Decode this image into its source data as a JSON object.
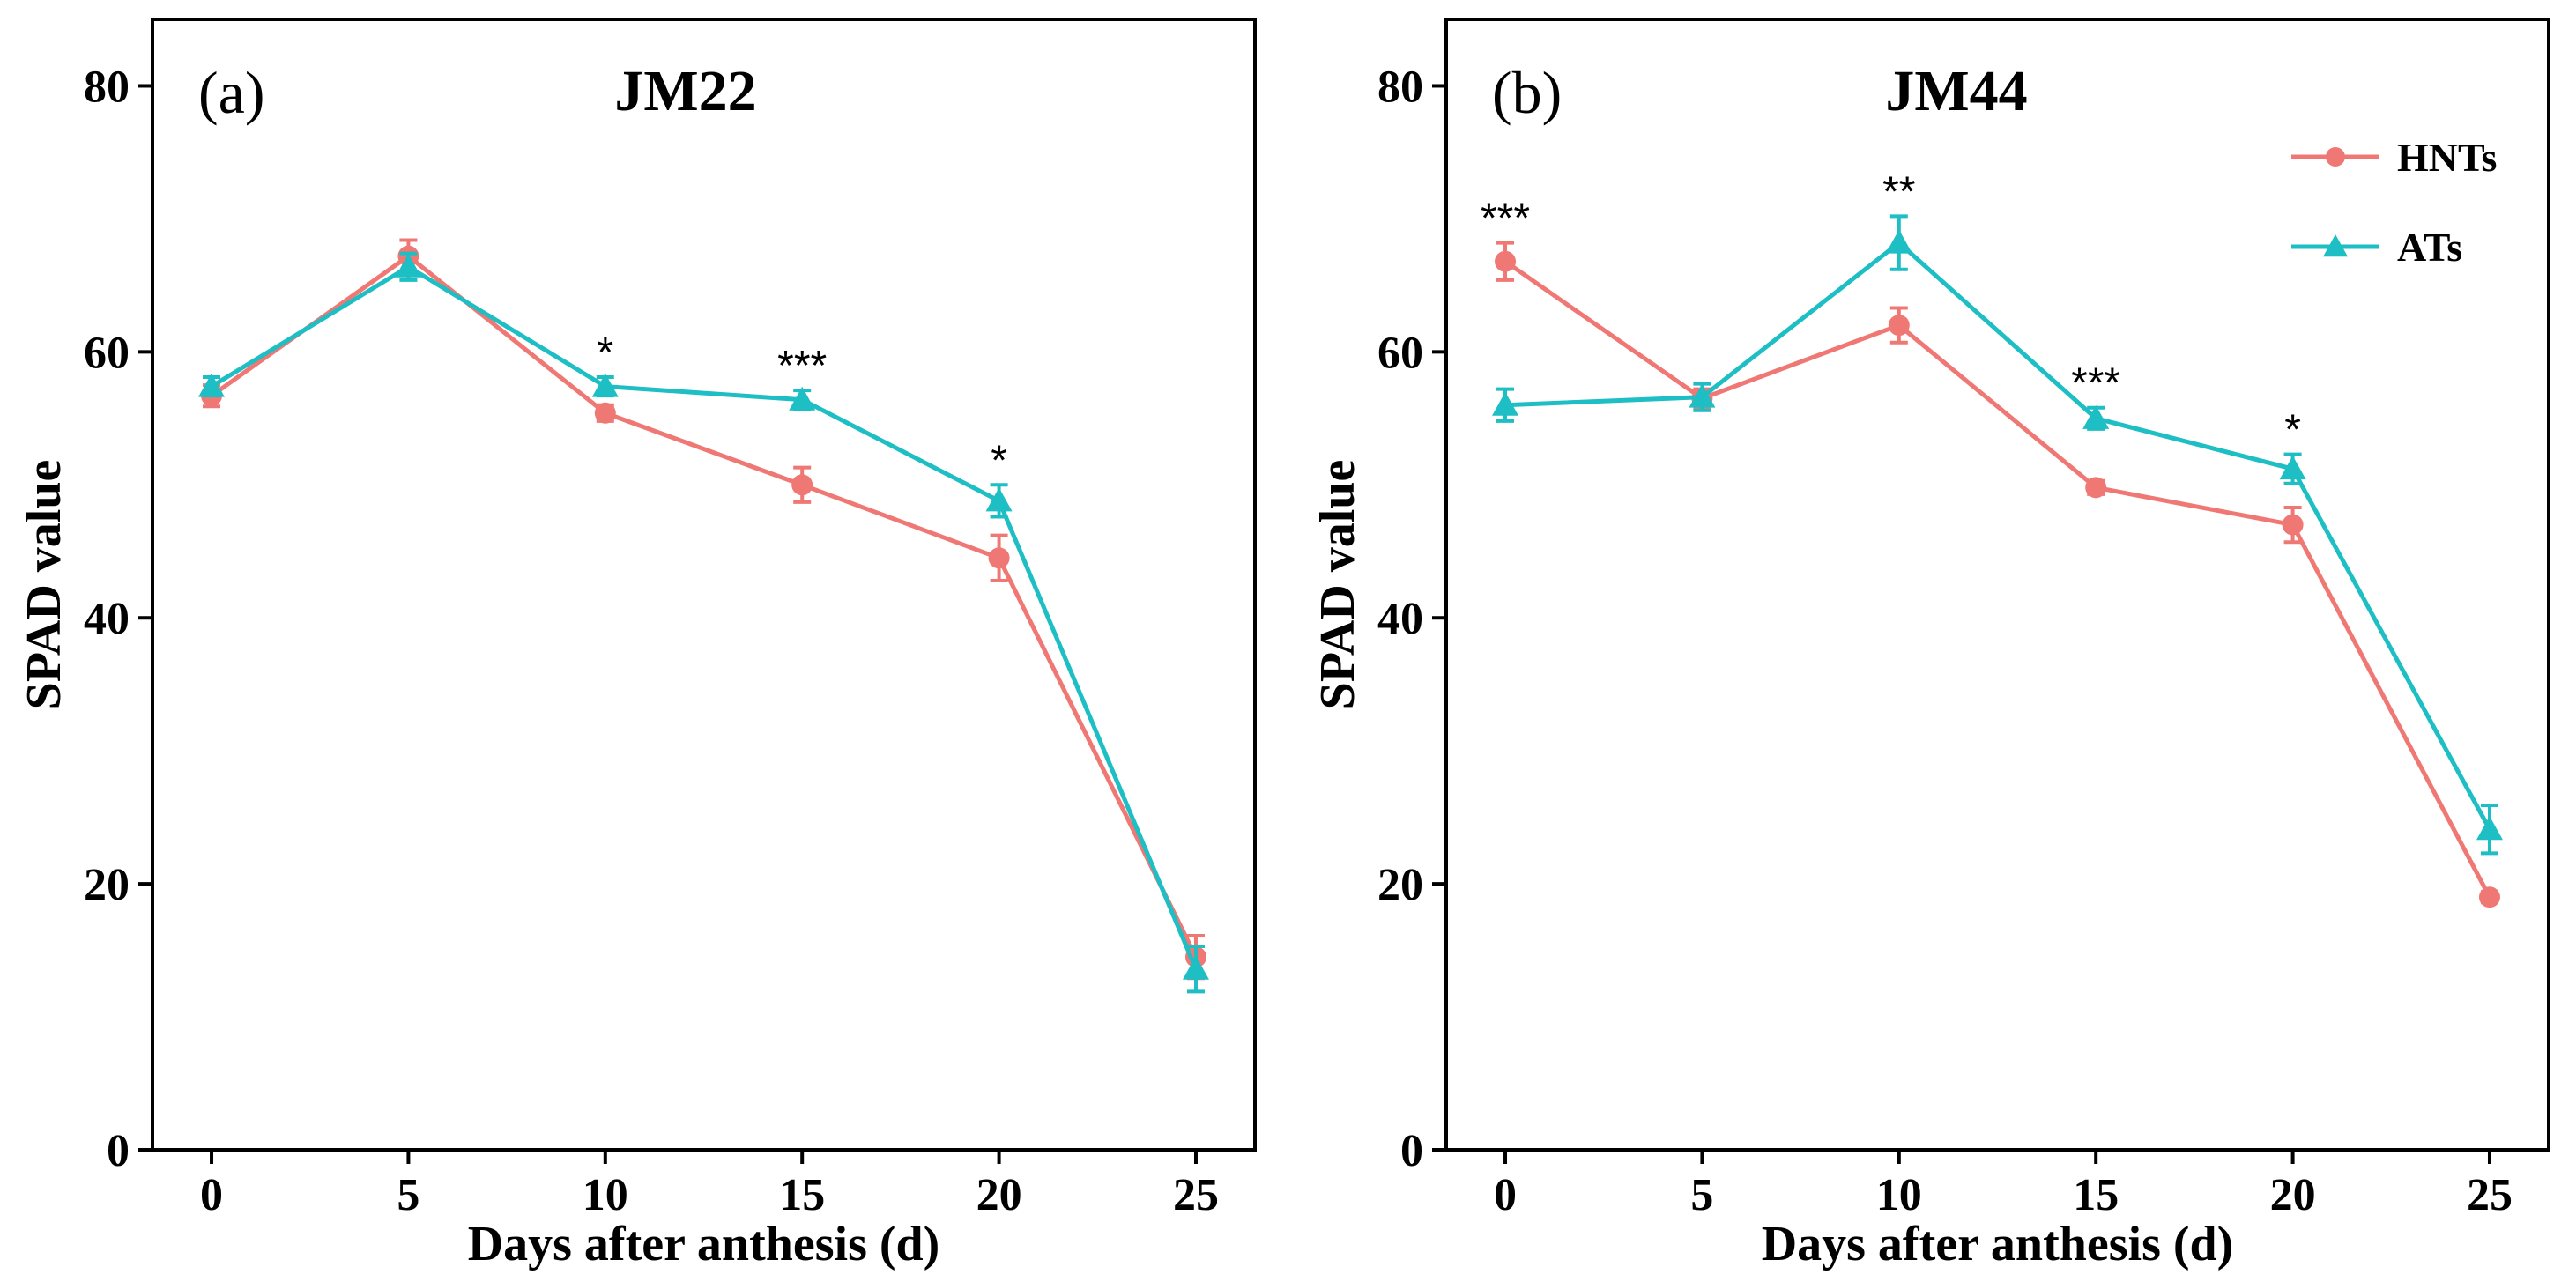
{
  "colors": {
    "HNTs": "#F07874",
    "ATs": "#1DBEC4"
  },
  "legend": {
    "placement": "top-right",
    "items": [
      "HNTs",
      "ATs"
    ]
  },
  "chart_data": [
    {
      "type": "line",
      "panel_label": "(a)",
      "title": "JM22",
      "xlabel": "Days after anthesis (d)",
      "ylabel": "SPAD value",
      "xlim": [
        -1.5,
        26.5
      ],
      "ylim": [
        0,
        85
      ],
      "xticks": [
        0,
        5,
        10,
        15,
        20,
        25
      ],
      "yticks": [
        0,
        20,
        40,
        60,
        80
      ],
      "x": [
        0,
        5,
        10,
        15,
        20,
        25
      ],
      "series": [
        {
          "name": "HNTs",
          "values": [
            56.7,
            67.2,
            55.4,
            50.0,
            44.5,
            14.5
          ],
          "error": [
            0.8,
            1.2,
            0.6,
            1.3,
            1.7,
            1.6
          ],
          "marker": "circle"
        },
        {
          "name": "ATs",
          "values": [
            57.4,
            66.4,
            57.4,
            56.4,
            48.8,
            13.6
          ],
          "error": [
            0.7,
            1.0,
            0.7,
            0.7,
            1.2,
            1.7
          ],
          "marker": "triangle"
        }
      ],
      "annotations": [
        {
          "x": 10,
          "text": "*"
        },
        {
          "x": 15,
          "text": "***"
        },
        {
          "x": 20,
          "text": "*"
        }
      ]
    },
    {
      "type": "line",
      "panel_label": "(b)",
      "title": "JM44",
      "xlabel": "Days after anthesis (d)",
      "ylabel": "SPAD value",
      "xlim": [
        -1.5,
        26.5
      ],
      "ylim": [
        0,
        85
      ],
      "xticks": [
        0,
        5,
        10,
        15,
        20,
        25
      ],
      "yticks": [
        0,
        20,
        40,
        60,
        80
      ],
      "x": [
        0,
        5,
        10,
        15,
        20,
        25
      ],
      "series": [
        {
          "name": "HNTs",
          "values": [
            66.8,
            56.5,
            62.0,
            49.8,
            47.0,
            19.0
          ],
          "error": [
            1.4,
            0.7,
            1.3,
            0.5,
            1.3,
            0.4
          ],
          "marker": "circle"
        },
        {
          "name": "ATs",
          "values": [
            56.0,
            56.6,
            68.2,
            55.0,
            51.2,
            24.1
          ],
          "error": [
            1.2,
            1.0,
            2.0,
            0.8,
            1.1,
            1.8
          ],
          "marker": "triangle"
        }
      ],
      "annotations": [
        {
          "x": 0,
          "text": "***"
        },
        {
          "x": 10,
          "text": "**"
        },
        {
          "x": 15,
          "text": "***"
        },
        {
          "x": 20,
          "text": "*"
        }
      ],
      "show_legend": true
    }
  ]
}
